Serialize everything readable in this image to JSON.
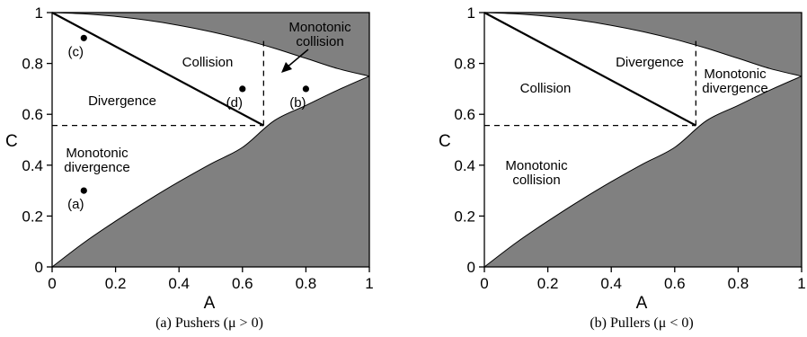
{
  "chart_data": [
    {
      "type": "region-diagram",
      "caption": "(a)   Pushers (μ > 0)",
      "xlabel": "A",
      "ylabel": "C",
      "xlim": [
        0,
        1
      ],
      "ylim": [
        0,
        1
      ],
      "xticks": [
        "0",
        "0.2",
        "0.4",
        "0.6",
        "0.8",
        "1"
      ],
      "yticks": [
        "0",
        "0.2",
        "0.4",
        "0.6",
        "0.8",
        "1"
      ],
      "boundary_lower": {
        "x": [
          0,
          0.1,
          0.2,
          0.3,
          0.4,
          0.5,
          0.6,
          0.7,
          0.8,
          0.9,
          1.0
        ],
        "y": [
          0,
          0.095,
          0.18,
          0.26,
          0.335,
          0.405,
          0.47,
          0.575,
          0.635,
          0.695,
          0.75
        ]
      },
      "boundary_upper": {
        "x": [
          0,
          0.1,
          0.2,
          0.3,
          0.4,
          0.5,
          0.6,
          0.7,
          0.8,
          0.9,
          1.0
        ],
        "y": [
          1,
          0.995,
          0.985,
          0.97,
          0.95,
          0.925,
          0.895,
          0.86,
          0.82,
          0.78,
          0.75
        ]
      },
      "separator": {
        "x": [
          0,
          0.6667
        ],
        "y": [
          1,
          0.556
        ]
      },
      "critical_point": {
        "x": 0.6667,
        "y": 0.556
      },
      "regions": [
        {
          "label": "Collision",
          "lines": [
            "Collision"
          ]
        },
        {
          "label": "Divergence",
          "lines": [
            "Divergence"
          ]
        },
        {
          "label": "Monotonic divergence",
          "lines": [
            "Monotonic",
            "divergence"
          ]
        },
        {
          "label": "Monotonic collision",
          "lines": [
            "Monotonic",
            "collision"
          ]
        }
      ],
      "points": [
        {
          "label": "(a)",
          "x": 0.1,
          "y": 0.3
        },
        {
          "label": "(b)",
          "x": 0.8,
          "y": 0.7
        },
        {
          "label": "(c)",
          "x": 0.1,
          "y": 0.9
        },
        {
          "label": "(d)",
          "x": 0.6,
          "y": 0.7
        }
      ]
    },
    {
      "type": "region-diagram",
      "caption": "(b)   Pullers (μ < 0)",
      "xlabel": "A",
      "ylabel": "C",
      "xlim": [
        0,
        1
      ],
      "ylim": [
        0,
        1
      ],
      "xticks": [
        "0",
        "0.2",
        "0.4",
        "0.6",
        "0.8",
        "1"
      ],
      "yticks": [
        "0",
        "0.2",
        "0.4",
        "0.6",
        "0.8",
        "1"
      ],
      "boundary_lower": {
        "x": [
          0,
          0.1,
          0.2,
          0.3,
          0.4,
          0.5,
          0.6,
          0.7,
          0.8,
          0.9,
          1.0
        ],
        "y": [
          0,
          0.095,
          0.18,
          0.26,
          0.335,
          0.405,
          0.47,
          0.575,
          0.635,
          0.695,
          0.75
        ]
      },
      "boundary_upper": {
        "x": [
          0,
          0.1,
          0.2,
          0.3,
          0.4,
          0.5,
          0.6,
          0.7,
          0.8,
          0.9,
          1.0
        ],
        "y": [
          1,
          0.995,
          0.985,
          0.97,
          0.95,
          0.925,
          0.895,
          0.86,
          0.82,
          0.78,
          0.75
        ]
      },
      "separator": {
        "x": [
          0,
          0.6667
        ],
        "y": [
          1,
          0.556
        ]
      },
      "critical_point": {
        "x": 0.6667,
        "y": 0.556
      },
      "regions": [
        {
          "label": "Collision",
          "lines": [
            "Collision"
          ]
        },
        {
          "label": "Divergence",
          "lines": [
            "Divergence"
          ]
        },
        {
          "label": "Monotonic divergence",
          "lines": [
            "Monotonic",
            "divergence"
          ]
        },
        {
          "label": "Monotonic collision",
          "lines": [
            "Monotonic",
            "collision"
          ]
        }
      ],
      "points": []
    }
  ],
  "colors": {
    "forbidden_region": "#808080",
    "line": "#000000"
  }
}
